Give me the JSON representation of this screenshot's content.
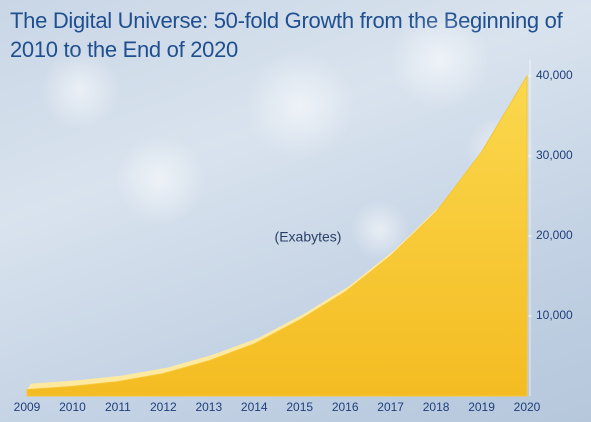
{
  "chart_data": {
    "type": "area",
    "title": "The Digital Universe: 50-fold Growth from the Beginning of 2010 to the End of 2020",
    "annotation": "(Exabytes)",
    "categories": [
      "2009",
      "2010",
      "2011",
      "2012",
      "2013",
      "2014",
      "2015",
      "2016",
      "2017",
      "2018",
      "2019",
      "2020"
    ],
    "values": [
      800,
      1200,
      1800,
      2800,
      4400,
      6500,
      9500,
      13000,
      17500,
      23000,
      30500,
      40000
    ],
    "color": "#f7c531",
    "ylim": [
      0,
      40000
    ],
    "yticks": [
      {
        "value": 10000,
        "label": "10,000"
      },
      {
        "value": 20000,
        "label": "20,000"
      },
      {
        "value": 30000,
        "label": "30,000"
      },
      {
        "value": 40000,
        "label": "40,000"
      }
    ],
    "y_axis_side": "right"
  }
}
